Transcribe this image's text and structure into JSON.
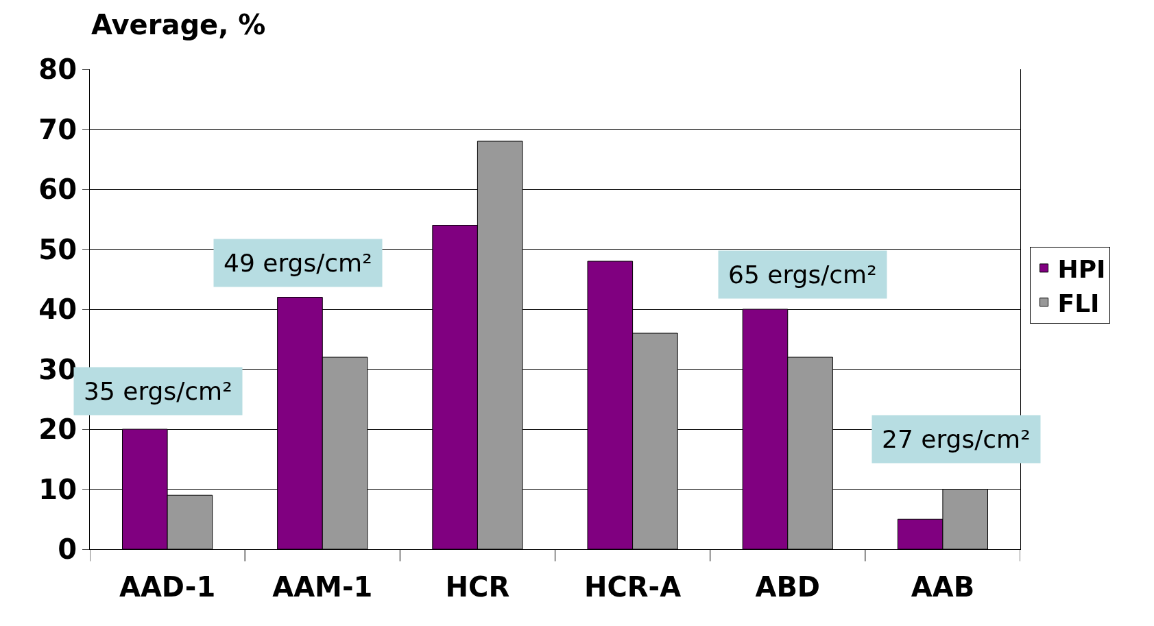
{
  "chart_data": {
    "type": "bar",
    "ylabel": "Average, %",
    "categories": [
      "AAD-1",
      "AAM-1",
      "HCR",
      "HCR-A",
      "ABD",
      "AAB"
    ],
    "series": [
      {
        "name": "HPI",
        "color": "#800080",
        "values": [
          20,
          42,
          54,
          48,
          40,
          5
        ]
      },
      {
        "name": "FLI",
        "color": "#999999",
        "values": [
          9,
          32,
          68,
          36,
          32,
          10
        ]
      }
    ],
    "ylim": [
      0,
      80
    ],
    "yticks": [
      0,
      10,
      20,
      30,
      40,
      50,
      60,
      70,
      80
    ],
    "grid": "y",
    "legend": "right",
    "annotations": [
      "35 ergs/cm²",
      "49 ergs/cm²",
      "65 ergs/cm²",
      "27 ergs/cm²"
    ]
  }
}
